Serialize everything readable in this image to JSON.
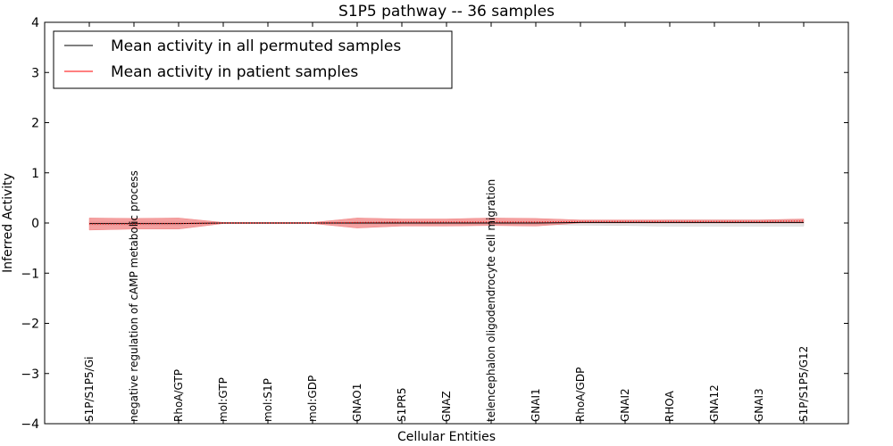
{
  "chart_data": {
    "type": "line",
    "title": "S1P5 pathway -- 36 samples",
    "xlabel": "Cellular Entities",
    "ylabel": "Inferred Activity",
    "ylim": [
      -4,
      4
    ],
    "yticks": [
      4,
      3,
      2,
      1,
      0,
      -1,
      -2,
      -3,
      -4
    ],
    "ytick_labels": [
      "4",
      "3",
      "2",
      "1",
      "0",
      "−1",
      "−2",
      "−3",
      "−4"
    ],
    "grid": false,
    "legend_position": "top-left",
    "categories": [
      "S1P/S1P5/Gi",
      "negative regulation of cAMP metabolic process",
      "RhoA/GTP",
      "mol:GTP",
      "mol:S1P",
      "mol:GDP",
      "GNAO1",
      "S1PR5",
      "GNAZ",
      "telencephalon oligodendrocyte cell migration",
      "GNAI1",
      "RhoA/GDP",
      "GNAI2",
      "RHOA",
      "GNA12",
      "GNAI3",
      "S1P/S1P5/G12"
    ],
    "series": [
      {
        "name": "Mean activity in all permuted samples",
        "color": "#000000",
        "style": "solid",
        "values": [
          -0.01,
          -0.01,
          -0.01,
          0.0,
          0.0,
          0.0,
          0.0,
          0.0,
          0.0,
          0.0,
          0.0,
          0.01,
          0.01,
          0.01,
          0.01,
          0.01,
          0.01
        ],
        "band_color": "#c8c8c8",
        "band_lower": [
          -0.04,
          -0.04,
          -0.04,
          -0.01,
          -0.01,
          -0.01,
          -0.02,
          -0.02,
          -0.02,
          -0.02,
          -0.03,
          -0.04,
          -0.05,
          -0.06,
          -0.06,
          -0.06,
          -0.06
        ],
        "band_upper": [
          0.02,
          0.02,
          0.02,
          0.01,
          0.01,
          0.01,
          0.02,
          0.02,
          0.02,
          0.02,
          0.03,
          0.04,
          0.05,
          0.06,
          0.06,
          0.06,
          0.06
        ]
      },
      {
        "name": "Mean activity in patient samples",
        "color": "#ff0000",
        "style": "dotted",
        "values": [
          -0.02,
          -0.02,
          -0.01,
          0.0,
          0.0,
          0.0,
          0.01,
          0.02,
          0.02,
          0.02,
          0.02,
          0.03,
          0.03,
          0.03,
          0.03,
          0.03,
          0.04
        ],
        "band_color": "#f08080",
        "band_lower": [
          -0.14,
          -0.12,
          -0.12,
          -0.01,
          -0.01,
          -0.01,
          -0.1,
          -0.06,
          -0.06,
          -0.05,
          -0.06,
          0.0,
          0.0,
          0.0,
          0.0,
          0.0,
          0.0
        ],
        "band_upper": [
          0.1,
          0.09,
          0.1,
          0.01,
          0.01,
          0.01,
          0.1,
          0.08,
          0.08,
          0.1,
          0.09,
          0.06,
          0.06,
          0.06,
          0.06,
          0.06,
          0.08
        ]
      }
    ]
  }
}
